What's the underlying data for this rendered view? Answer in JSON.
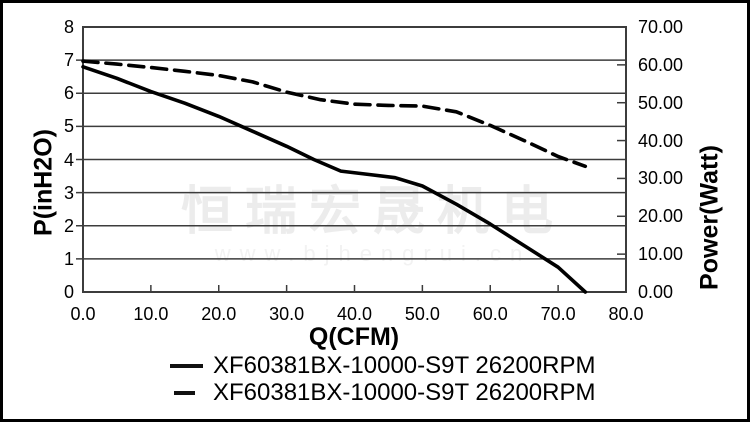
{
  "watermark": {
    "brand_text": "恒瑞宏晟机电",
    "url_text": "www.bjhengrui.cn"
  },
  "colors": {
    "background": "#ffffff",
    "curve": "#000000",
    "grid": "#3c3c3c",
    "axis": "#3c3c3c",
    "watermark_brand": "#ececec",
    "watermark_url": "#f2f2f2"
  },
  "chart_data": {
    "type": "line",
    "xlabel": "Q(CFM)",
    "ylabel_left": "P(inH2O)",
    "ylabel_right": "Power(Watt)",
    "x_range": [
      0,
      80
    ],
    "y_left_range": [
      0,
      8
    ],
    "y_right_range": [
      0,
      70
    ],
    "x_tick_labels": [
      "0.0",
      "10.0",
      "20.0",
      "30.0",
      "40.0",
      "50.0",
      "60.0",
      "70.0",
      "80.0"
    ],
    "y_left_tick_labels": [
      "8",
      "7",
      "6",
      "5",
      "4",
      "3",
      "2",
      "1",
      "0"
    ],
    "y_right_tick_labels": [
      "70.00",
      "60.00",
      "50.00",
      "40.00",
      "30.00",
      "20.00",
      "10.00",
      "0.00"
    ],
    "grid": "horizontal",
    "legend_position": "bottom",
    "series": [
      {
        "name": "XF60381BX-10000-S9T 26200RPM",
        "line_style": "solid",
        "axis": "left",
        "x": [
          0,
          5,
          10,
          15,
          20,
          25,
          30,
          34,
          38,
          42,
          46,
          50,
          55,
          60,
          65,
          70,
          74
        ],
        "y": [
          6.8,
          6.45,
          6.05,
          5.7,
          5.3,
          4.85,
          4.4,
          4.0,
          3.65,
          3.55,
          3.45,
          3.2,
          2.65,
          2.05,
          1.4,
          0.75,
          0
        ]
      },
      {
        "name": "XF60381BX-10000-S9T 26200RPM",
        "line_style": "dashed",
        "axis": "right",
        "x": [
          0,
          5,
          10,
          15,
          20,
          25,
          30,
          35,
          40,
          45,
          50,
          55,
          60,
          65,
          70,
          74
        ],
        "y": [
          61,
          60.2,
          59.3,
          58.3,
          57.2,
          55.5,
          52.8,
          50.8,
          49.6,
          49.3,
          49.1,
          47.6,
          44,
          40,
          35.8,
          33.2
        ]
      }
    ]
  }
}
